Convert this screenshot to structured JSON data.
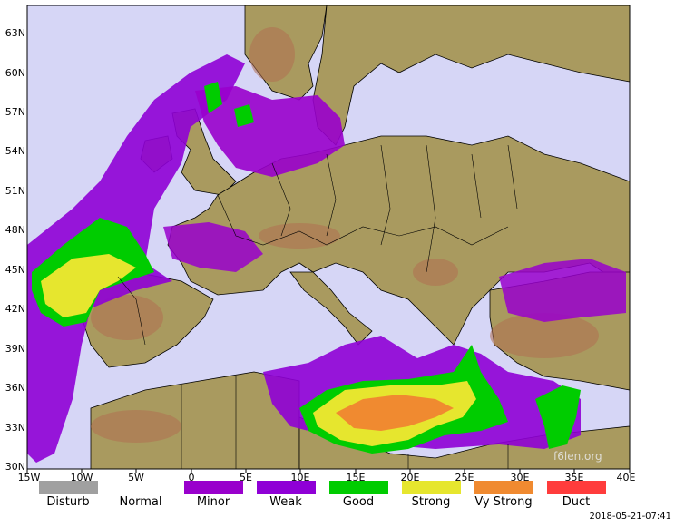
{
  "map": {
    "lat_labels": [
      "63N",
      "60N",
      "57N",
      "54N",
      "51N",
      "48N",
      "45N",
      "42N",
      "39N",
      "36N",
      "33N",
      "30N"
    ],
    "lon_labels": [
      "15W",
      "10W",
      "5W",
      "0",
      "5E",
      "10E",
      "15E",
      "20E",
      "25E",
      "30E",
      "35E",
      "40E"
    ],
    "colors": {
      "sea": "#d6d6f6",
      "land": "#a99a5f",
      "land_low": "#8f8d40",
      "mountain": "#b07050",
      "peak": "#e6e6e6",
      "disturb": "#a0a0a0",
      "normal": "#ffffff",
      "minor": "#9900cc",
      "weak": "#8f00d6",
      "good": "#00cc00",
      "strong": "#e6e62e",
      "vy_strong": "#f08a30",
      "duct": "#ff3c3c"
    }
  },
  "legend": [
    {
      "label": "Disturb",
      "color": "#a0a0a0"
    },
    {
      "label": "Normal",
      "color": "#ffffff"
    },
    {
      "label": "Minor",
      "color": "#9900cc"
    },
    {
      "label": "Weak",
      "color": "#8f00d6"
    },
    {
      "label": "Good",
      "color": "#00cc00"
    },
    {
      "label": "Strong",
      "color": "#e6e62e"
    },
    {
      "label": "Vy Strong",
      "color": "#f08a30"
    },
    {
      "label": "Duct",
      "color": "#ff3c3c"
    }
  ],
  "watermark": "f6len.org",
  "timestamp": "2018-05-21-07:41"
}
